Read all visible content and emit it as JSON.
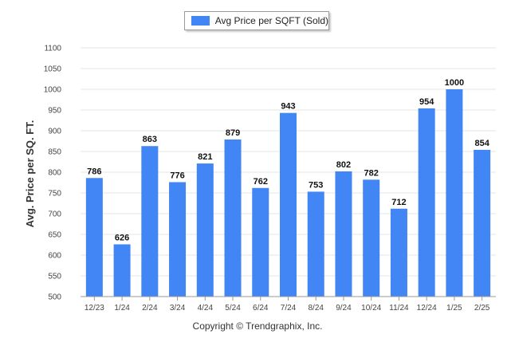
{
  "chart_data": {
    "type": "bar",
    "categories": [
      "12/23",
      "1/24",
      "2/24",
      "3/24",
      "4/24",
      "5/24",
      "6/24",
      "7/24",
      "8/24",
      "9/24",
      "10/24",
      "11/24",
      "12/24",
      "1/25",
      "2/25"
    ],
    "series": [
      {
        "name": "Avg Price per SQFT (Sold)",
        "values": [
          786,
          626,
          863,
          776,
          821,
          879,
          762,
          943,
          753,
          802,
          782,
          712,
          954,
          1000,
          854
        ]
      }
    ],
    "ylabel": "Avg. Price per SQ. FT.",
    "xlabel": "",
    "ylim": [
      500,
      1100
    ],
    "yticks": [
      500,
      550,
      600,
      650,
      700,
      750,
      800,
      850,
      900,
      950,
      1000,
      1050,
      1100
    ],
    "grid": true,
    "legend_position": "top-center",
    "bar_color": "#4285f4"
  },
  "footer": {
    "credit": "Copyright © Trendgraphix, Inc."
  }
}
